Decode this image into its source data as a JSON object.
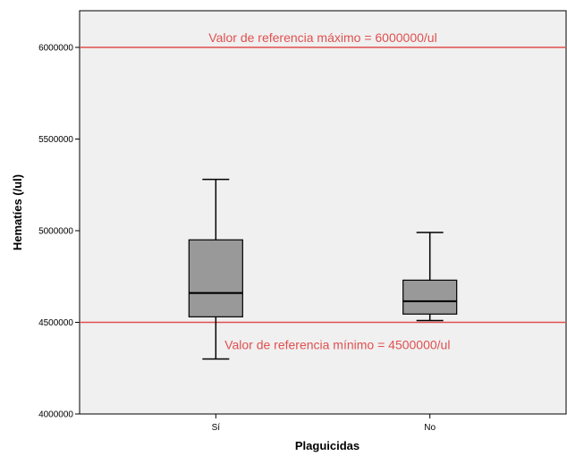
{
  "chart_data": {
    "type": "boxplot",
    "xlabel": "Plaguicidas",
    "ylabel": "Hematíes (/ul)",
    "ylim": [
      4000000,
      6200000
    ],
    "yticks": [
      {
        "value": 4000000,
        "label": "4000000"
      },
      {
        "value": 4500000,
        "label": "4500000"
      },
      {
        "value": 5000000,
        "label": "5000000"
      },
      {
        "value": 5500000,
        "label": "5500000"
      },
      {
        "value": 6000000,
        "label": "6000000"
      }
    ],
    "categories": [
      "Sí",
      "No"
    ],
    "boxes": [
      {
        "category": "Sí",
        "whisker_low": 4300000,
        "q1": 4530000,
        "median": 4660000,
        "q3": 4950000,
        "whisker_high": 5280000
      },
      {
        "category": "No",
        "whisker_low": 4510000,
        "q1": 4545000,
        "median": 4615000,
        "q3": 4730000,
        "whisker_high": 4990000
      }
    ],
    "reference_lines": [
      {
        "value": 6000000,
        "label": "Valor de referencia máximo = 6000000/ul"
      },
      {
        "value": 4500000,
        "label": "Valor de referencia mínimo = 4500000/ul"
      }
    ],
    "grid": false,
    "colors": {
      "plot_background": "#f0f0f0",
      "box_fill": "#999999",
      "box_stroke": "#000000",
      "reference_line": "#e05050",
      "reference_text": "#e05050"
    }
  }
}
